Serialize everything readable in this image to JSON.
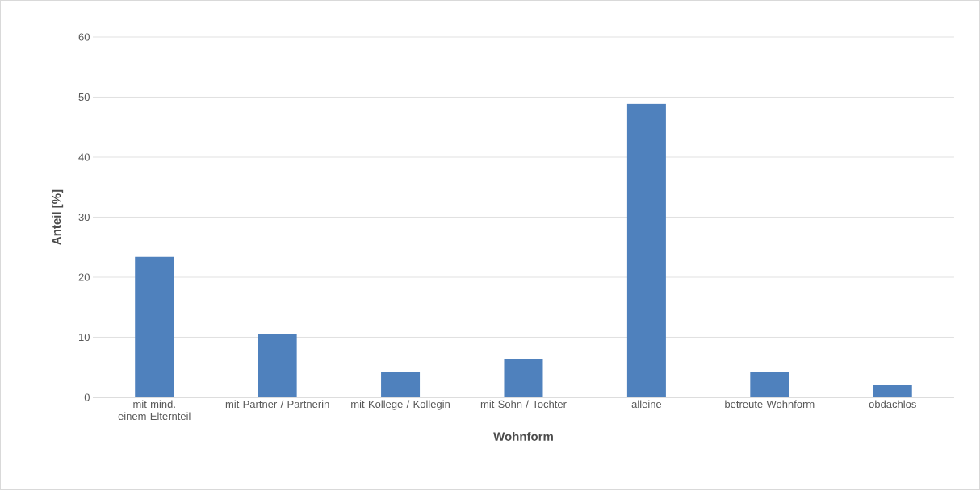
{
  "chart_data": {
    "type": "bar",
    "xlabel": "Wohnform",
    "ylabel": "Anteil [%]",
    "categories": [
      "mit mind. einem Elternteil",
      "mit Partner / Partnerin",
      "mit Kollege / Kollegin",
      "mit Sohn / Tochter",
      "alleine",
      "betreute Wohnform",
      "obdachlos"
    ],
    "values": [
      23.4,
      10.6,
      4.3,
      6.4,
      48.9,
      4.3,
      2.0
    ],
    "color": "#4f81bd",
    "ylim": [
      0,
      60
    ],
    "yticks": [
      0,
      10,
      20,
      30,
      40,
      50,
      60
    ],
    "grid": "y"
  }
}
